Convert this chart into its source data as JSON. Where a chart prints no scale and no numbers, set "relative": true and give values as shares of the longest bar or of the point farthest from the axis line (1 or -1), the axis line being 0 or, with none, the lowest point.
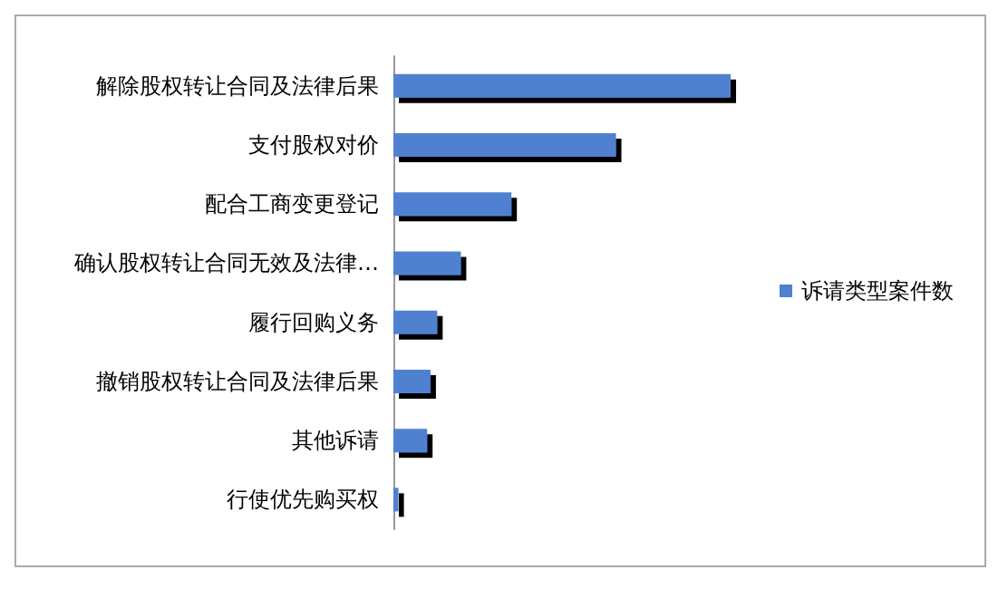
{
  "chart_data": {
    "type": "bar",
    "orientation": "horizontal",
    "relative": true,
    "legend": "right",
    "categories": [
      "解除股权转让合同及法律后果",
      "支付股权对价",
      "配合工商变更登记",
      "确认股权转让合同无效及法律…",
      "履行回购义务",
      "撤销股权转让合同及法律后果",
      "其他诉请",
      "行使优先购买权"
    ],
    "series": [
      {
        "name": "诉请类型案件数",
        "color": "#4f81d0",
        "values": [
          1,
          0.66,
          0.35,
          0.2,
          0.13,
          0.11,
          0.1,
          0.015
        ]
      }
    ]
  }
}
